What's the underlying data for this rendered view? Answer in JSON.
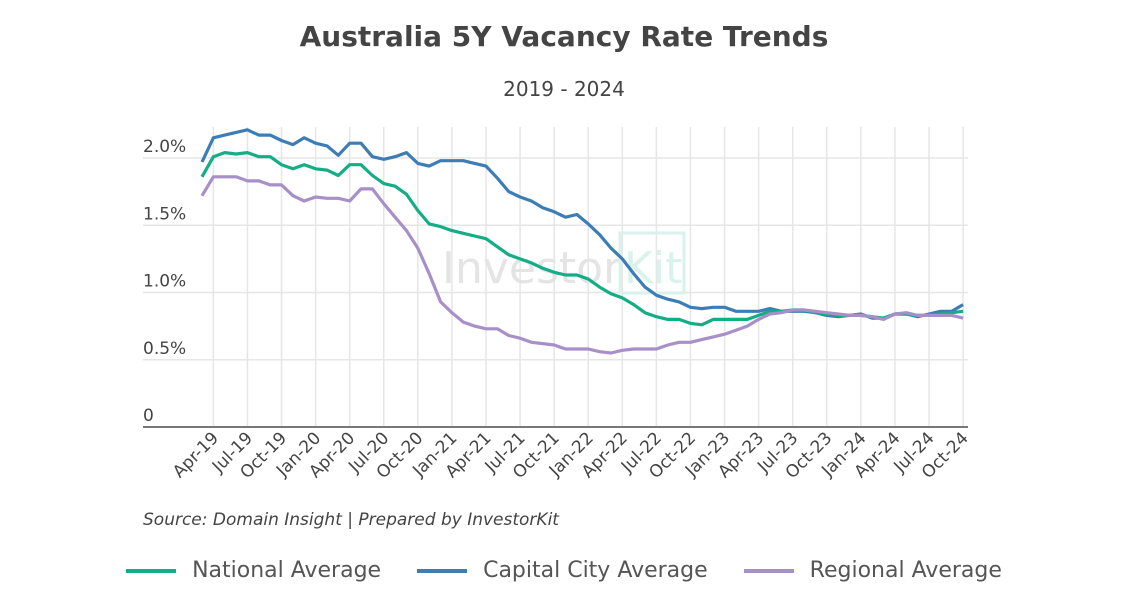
{
  "chart_data": {
    "type": "line",
    "title": "Australia 5Y Vacancy Rate Trends",
    "subtitle": "2019 - 2024",
    "source": "Source: Domain Insight | Prepared by InvestorKit",
    "watermark": "InvestorKit",
    "xlabel": "",
    "ylabel": "",
    "ylim": [
      0,
      2.0
    ],
    "y_ticks": [
      {
        "v": 0,
        "label": "0"
      },
      {
        "v": 0.5,
        "label": "0.5%"
      },
      {
        "v": 1.0,
        "label": "1.0%"
      },
      {
        "v": 1.5,
        "label": "1.5%"
      },
      {
        "v": 2.0,
        "label": "2.0%"
      }
    ],
    "x_start": "Mar-19",
    "x_end": "Oct-24",
    "x_tick_labels": [
      "Apr-19",
      "Jul-19",
      "Oct-19",
      "Jan-20",
      "Apr-20",
      "Jul-20",
      "Oct-20",
      "Jan-21",
      "Apr-21",
      "Jul-21",
      "Oct-21",
      "Jan-22",
      "Apr-22",
      "Jul-22",
      "Oct-22",
      "Jan-23",
      "Apr-23",
      "Jul-23",
      "Oct-23",
      "Jan-24",
      "Apr-24",
      "Jul-24",
      "Oct-24"
    ],
    "grid": true,
    "legend_position": "bottom",
    "series": [
      {
        "name": "National Average",
        "color": "#13ad86",
        "values": [
          1.86,
          2.01,
          2.04,
          2.03,
          2.04,
          2.01,
          2.01,
          1.95,
          1.92,
          1.95,
          1.92,
          1.91,
          1.87,
          1.95,
          1.95,
          1.87,
          1.81,
          1.79,
          1.73,
          1.61,
          1.51,
          1.49,
          1.46,
          1.44,
          1.42,
          1.4,
          1.34,
          1.28,
          1.25,
          1.22,
          1.18,
          1.15,
          1.13,
          1.13,
          1.1,
          1.04,
          0.99,
          0.96,
          0.91,
          0.85,
          0.82,
          0.8,
          0.8,
          0.77,
          0.76,
          0.8,
          0.8,
          0.8,
          0.8,
          0.83,
          0.86,
          0.86,
          0.87,
          0.87,
          0.85,
          0.84,
          0.83,
          0.83,
          0.83,
          0.82,
          0.81,
          0.84,
          0.84,
          0.83,
          0.83,
          0.84,
          0.85,
          0.86
        ]
      },
      {
        "name": "Capital City Average",
        "color": "#3d7db5",
        "values": [
          1.97,
          2.15,
          2.17,
          2.19,
          2.21,
          2.17,
          2.17,
          2.13,
          2.1,
          2.15,
          2.11,
          2.09,
          2.02,
          2.11,
          2.11,
          2.01,
          1.99,
          2.01,
          2.04,
          1.96,
          1.94,
          1.98,
          1.98,
          1.98,
          1.96,
          1.94,
          1.85,
          1.75,
          1.71,
          1.68,
          1.63,
          1.6,
          1.56,
          1.58,
          1.51,
          1.43,
          1.33,
          1.25,
          1.14,
          1.04,
          0.98,
          0.95,
          0.93,
          0.89,
          0.88,
          0.89,
          0.89,
          0.86,
          0.86,
          0.86,
          0.88,
          0.86,
          0.86,
          0.86,
          0.85,
          0.83,
          0.82,
          0.83,
          0.84,
          0.81,
          0.81,
          0.84,
          0.84,
          0.82,
          0.84,
          0.86,
          0.86,
          0.91
        ]
      },
      {
        "name": "Regional Average",
        "color": "#a78fc8",
        "values": [
          1.72,
          1.86,
          1.86,
          1.86,
          1.83,
          1.83,
          1.8,
          1.8,
          1.72,
          1.68,
          1.71,
          1.7,
          1.7,
          1.68,
          1.77,
          1.77,
          1.66,
          1.56,
          1.46,
          1.33,
          1.14,
          0.93,
          0.85,
          0.78,
          0.75,
          0.73,
          0.73,
          0.68,
          0.66,
          0.63,
          0.62,
          0.61,
          0.58,
          0.58,
          0.58,
          0.56,
          0.55,
          0.57,
          0.58,
          0.58,
          0.58,
          0.61,
          0.63,
          0.63,
          0.65,
          0.67,
          0.69,
          0.72,
          0.75,
          0.8,
          0.84,
          0.85,
          0.87,
          0.87,
          0.86,
          0.85,
          0.84,
          0.83,
          0.83,
          0.82,
          0.8,
          0.84,
          0.85,
          0.83,
          0.83,
          0.83,
          0.83,
          0.81
        ]
      }
    ]
  }
}
